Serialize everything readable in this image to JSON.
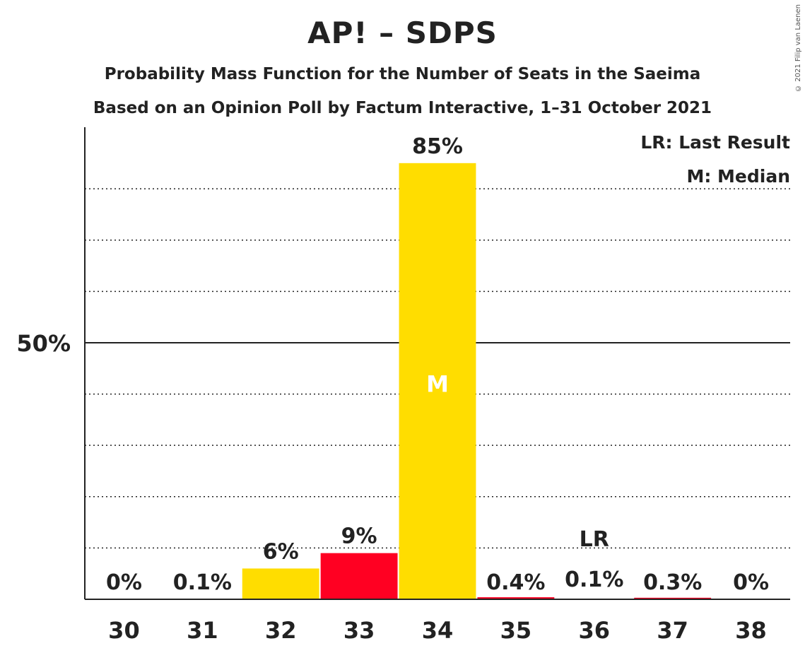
{
  "header": {
    "title": "AP! – SDPS",
    "subtitle": "Probability Mass Function for the Number of Seats in the Saeima",
    "source": "Based on an Opinion Poll by Factum Interactive, 1–31 October 2021",
    "copyright": "© 2021 Filip van Laenen"
  },
  "colors": {
    "yellow": "#FFDD00",
    "red": "#FF0022",
    "axis": "#222222",
    "grid": "#222222"
  },
  "chart_data": {
    "type": "bar",
    "title": "AP! – SDPS",
    "categories": [
      "30",
      "31",
      "32",
      "33",
      "34",
      "35",
      "36",
      "37",
      "38"
    ],
    "values": [
      0,
      0.1,
      6,
      9,
      85,
      0.4,
      0.1,
      0.3,
      0
    ],
    "value_labels": [
      "0%",
      "0.1%",
      "6%",
      "9%",
      "85%",
      "0.4%",
      "0.1%",
      "0.3%",
      "0%"
    ],
    "bar_colors": [
      "#FFDD00",
      "#FFDD00",
      "#FFDD00",
      "#FF0022",
      "#FFDD00",
      "#FF0022",
      "#FFDD00",
      "#FF0022",
      "#FFDD00"
    ],
    "ylim": [
      0,
      92
    ],
    "y_major_tick": {
      "value": 50,
      "label": "50%"
    },
    "y_gridlines": [
      10,
      20,
      30,
      40,
      50,
      60,
      70,
      80
    ],
    "grid": true,
    "median_category": "34",
    "median_marker": "M",
    "last_result_category": "36",
    "last_result_marker": "LR",
    "legend": {
      "placement": "top-right",
      "entries": [
        "LR: Last Result",
        "M: Median"
      ]
    }
  }
}
